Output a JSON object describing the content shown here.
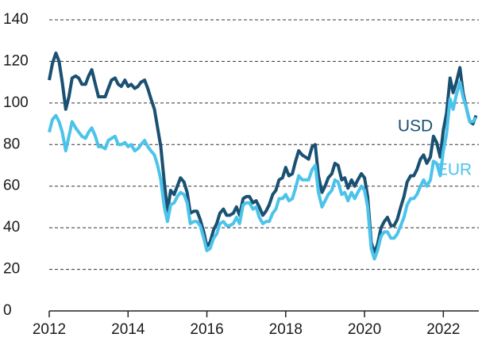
{
  "chart_data": {
    "type": "line",
    "annotations": [
      "USD",
      "EUR"
    ],
    "x": [
      2012.0,
      2012.08,
      2012.17,
      2012.25,
      2012.33,
      2012.42,
      2012.5,
      2012.58,
      2012.67,
      2012.75,
      2012.83,
      2012.92,
      2013.0,
      2013.08,
      2013.17,
      2013.25,
      2013.33,
      2013.42,
      2013.5,
      2013.58,
      2013.67,
      2013.75,
      2013.83,
      2013.92,
      2014.0,
      2014.08,
      2014.17,
      2014.25,
      2014.33,
      2014.42,
      2014.5,
      2014.58,
      2014.67,
      2014.75,
      2014.83,
      2014.92,
      2015.0,
      2015.08,
      2015.17,
      2015.25,
      2015.33,
      2015.42,
      2015.5,
      2015.58,
      2015.67,
      2015.75,
      2015.83,
      2015.92,
      2016.0,
      2016.08,
      2016.17,
      2016.25,
      2016.33,
      2016.42,
      2016.5,
      2016.58,
      2016.67,
      2016.75,
      2016.83,
      2016.92,
      2017.0,
      2017.08,
      2017.17,
      2017.25,
      2017.33,
      2017.42,
      2017.5,
      2017.58,
      2017.67,
      2017.75,
      2017.83,
      2017.92,
      2018.0,
      2018.08,
      2018.17,
      2018.25,
      2018.33,
      2018.42,
      2018.5,
      2018.58,
      2018.67,
      2018.75,
      2018.83,
      2018.92,
      2019.0,
      2019.08,
      2019.17,
      2019.25,
      2019.33,
      2019.42,
      2019.5,
      2019.58,
      2019.67,
      2019.75,
      2019.83,
      2019.92,
      2020.0,
      2020.08,
      2020.17,
      2020.25,
      2020.33,
      2020.42,
      2020.5,
      2020.58,
      2020.67,
      2020.75,
      2020.83,
      2020.92,
      2021.0,
      2021.08,
      2021.17,
      2021.25,
      2021.33,
      2021.42,
      2021.5,
      2021.58,
      2021.67,
      2021.75,
      2021.83,
      2021.92,
      2022.0,
      2022.08,
      2022.17,
      2022.25,
      2022.33,
      2022.42,
      2022.5,
      2022.58,
      2022.67,
      2022.75,
      2022.83
    ],
    "series": [
      {
        "name": "USD",
        "color": "#1a5071",
        "values": [
          111,
          119,
          124,
          120,
          110,
          97,
          103,
          112,
          113,
          112,
          109,
          109,
          113,
          116,
          109,
          103,
          103,
          103,
          107,
          111,
          112,
          109,
          108,
          111,
          108,
          109,
          107,
          108,
          110,
          111,
          107,
          102,
          97,
          88,
          79,
          62,
          48,
          58,
          56,
          60,
          64,
          62,
          57,
          47,
          48,
          48,
          44,
          38,
          31,
          33,
          39,
          42,
          47,
          49,
          46,
          46,
          47,
          50,
          46,
          54,
          55,
          55,
          52,
          53,
          50,
          46,
          48,
          51,
          56,
          58,
          63,
          64,
          69,
          65,
          66,
          72,
          77,
          75,
          74,
          73,
          79,
          80,
          65,
          57,
          60,
          64,
          66,
          71,
          70,
          63,
          64,
          59,
          63,
          60,
          63,
          66,
          64,
          55,
          33,
          28,
          32,
          40,
          43,
          45,
          41,
          41,
          44,
          50,
          55,
          62,
          65,
          65,
          68,
          73,
          75,
          71,
          74,
          84,
          81,
          74,
          87,
          95,
          112,
          105,
          110,
          117,
          105,
          98,
          91,
          90,
          94
        ]
      },
      {
        "name": "EUR",
        "color": "#4cc3ea",
        "values": [
          86,
          92,
          94,
          91,
          86,
          77,
          84,
          91,
          88,
          86,
          84,
          83,
          86,
          88,
          84,
          79,
          79,
          78,
          82,
          83,
          84,
          80,
          80,
          81,
          79,
          80,
          77,
          78,
          80,
          82,
          79,
          77,
          75,
          70,
          63,
          50,
          43,
          51,
          52,
          55,
          57,
          56,
          52,
          42,
          43,
          43,
          41,
          35,
          29,
          30,
          35,
          37,
          42,
          43,
          41,
          41,
          42,
          45,
          42,
          51,
          52,
          52,
          49,
          50,
          45,
          42,
          43,
          43,
          47,
          49,
          54,
          54,
          56,
          53,
          54,
          59,
          65,
          63,
          63,
          63,
          68,
          70,
          57,
          50,
          53,
          56,
          58,
          63,
          62,
          56,
          57,
          53,
          57,
          54,
          57,
          60,
          58,
          50,
          30,
          25,
          29,
          36,
          38,
          38,
          35,
          35,
          37,
          41,
          45,
          51,
          54,
          54,
          56,
          60,
          63,
          60,
          63,
          72,
          71,
          65,
          77,
          85,
          102,
          97,
          104,
          110,
          103,
          98,
          91,
          91,
          93
        ]
      }
    ],
    "xlim": [
      2012,
      2022.9
    ],
    "xticks": [
      2012,
      2014,
      2016,
      2018,
      2020,
      2022
    ],
    "ylim": [
      0,
      140
    ],
    "yticks": [
      0,
      20,
      40,
      60,
      80,
      100,
      120,
      140
    ],
    "grid": true
  }
}
